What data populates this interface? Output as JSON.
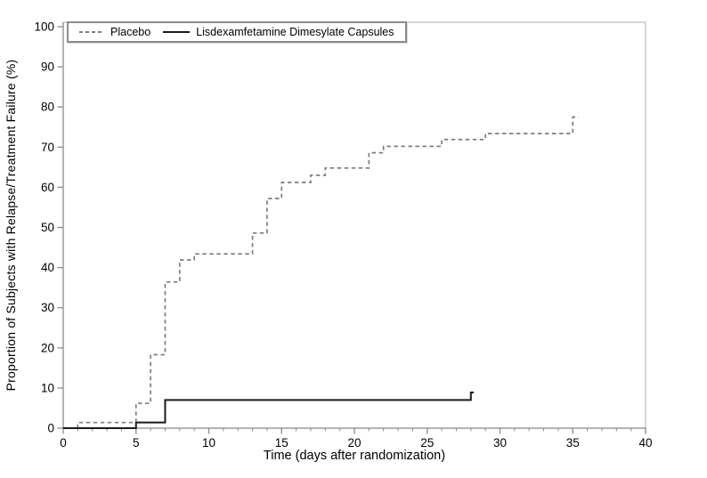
{
  "chart_data": {
    "type": "line",
    "subtype": "kaplan-meier-step",
    "title": "",
    "xlabel": "Time (days after randomization)",
    "ylabel": "Proportion of Subjects with Relapse/Treatment Failure (%)",
    "xlim": [
      0,
      40
    ],
    "ylim": [
      0,
      100
    ],
    "x_major_ticks": [
      0,
      5,
      10,
      15,
      20,
      25,
      30,
      35,
      40
    ],
    "x_minor_tick_interval": 1,
    "y_major_ticks": [
      0,
      10,
      20,
      30,
      40,
      50,
      60,
      70,
      80,
      90,
      100
    ],
    "grid": "off",
    "legend_position": "top-left-inside",
    "series": [
      {
        "name": "Placebo",
        "line_style": "dashed",
        "color": "#7f7f7f",
        "step_points": [
          [
            0,
            0
          ],
          [
            1,
            1.4
          ],
          [
            5,
            6.2
          ],
          [
            6,
            18.3
          ],
          [
            7,
            36.4
          ],
          [
            8,
            41.9
          ],
          [
            9,
            43.4
          ],
          [
            13,
            48.6
          ],
          [
            14,
            57.2
          ],
          [
            15,
            61.2
          ],
          [
            17,
            63.0
          ],
          [
            18,
            64.8
          ],
          [
            21,
            68.6
          ],
          [
            22,
            70.2
          ],
          [
            26,
            71.9
          ],
          [
            29,
            73.4
          ],
          [
            35,
            77.5
          ]
        ],
        "end_x": 35.4
      },
      {
        "name": "Lisdexamfetamine Dimesylate Capsules",
        "line_style": "solid",
        "color": "#1a1a1a",
        "step_points": [
          [
            0,
            0
          ],
          [
            5,
            1.4
          ],
          [
            7,
            7.0
          ],
          [
            28,
            8.9
          ]
        ],
        "end_x": 28.2
      }
    ]
  },
  "legend": {
    "items": [
      {
        "label": "Placebo",
        "line_style": "dashed",
        "color": "#7f7f7f"
      },
      {
        "label": "Lisdexamfetamine Dimesylate Capsules",
        "line_style": "solid",
        "color": "#1a1a1a"
      }
    ]
  },
  "axis_style": {
    "axis_line_color": "#9b9b9b",
    "frame_line_color": "#c9c9c9",
    "tick_color": "#8a8a8a",
    "label_color": "#000000"
  }
}
